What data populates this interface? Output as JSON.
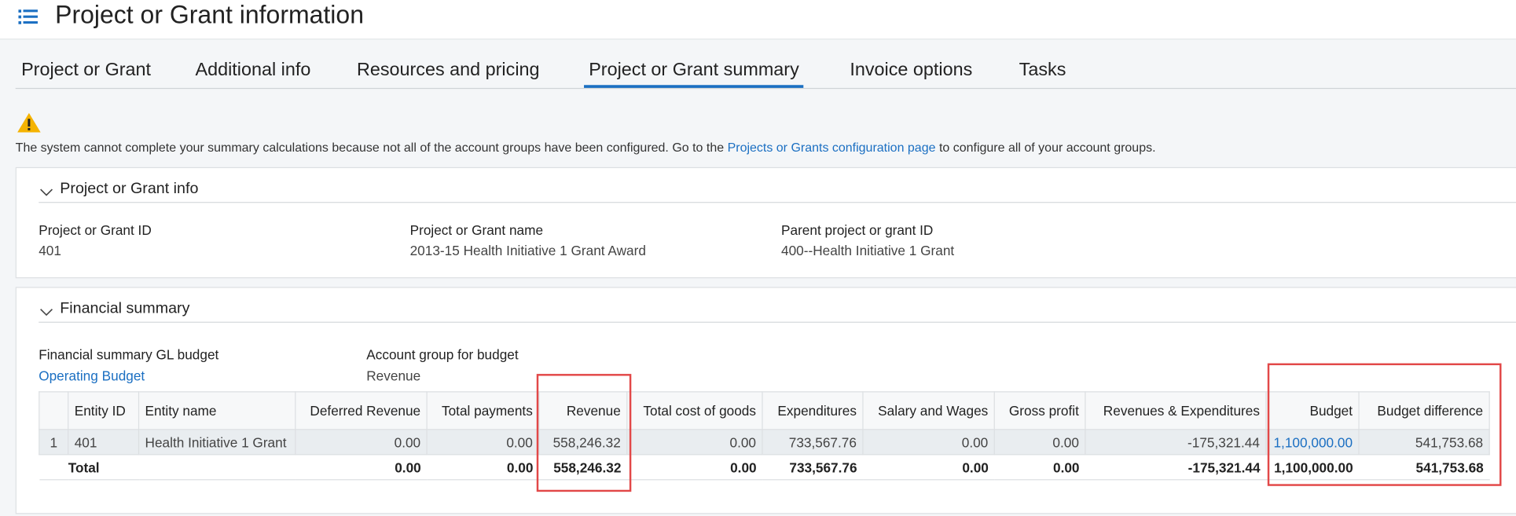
{
  "header": {
    "title": "Project or Grant information"
  },
  "tabs": {
    "items": [
      "Project or Grant",
      "Additional info",
      "Resources and pricing",
      "Project or Grant summary",
      "Invoice options",
      "Tasks"
    ],
    "active": 3
  },
  "warning": {
    "before": "The system cannot complete your summary calculations because not all of the account groups have been configured. Go to the",
    "link": "Projects or Grants configuration page",
    "after": "to configure all of your account groups."
  },
  "info": {
    "title": "Project or Grant info",
    "fields": [
      {
        "label": "Project or Grant ID",
        "value": "401"
      },
      {
        "label": "Project or Grant name",
        "value": "2013-15 Health Initiative 1 Grant Award"
      },
      {
        "label": "Parent project or grant ID",
        "value": "400--Health Initiative 1 Grant"
      }
    ]
  },
  "financial": {
    "title": "Financial summary",
    "fields": [
      {
        "label": "Financial summary GL budget",
        "value": "Operating Budget"
      },
      {
        "label": "Account group for budget",
        "value": "Revenue"
      }
    ]
  },
  "table": {
    "columns": [
      "Entity ID",
      "Entity name",
      "Deferred Revenue",
      "Total payments",
      "Revenue",
      "Total cost of goods",
      "Expenditures",
      "Salary and Wages",
      "Gross profit",
      "Revenues & Expenditures",
      "Budget",
      "Budget difference"
    ],
    "rows": [
      {
        "num": "1",
        "cells": [
          "401",
          "Health Initiative 1 Grant",
          "0.00",
          "0.00",
          "558,246.32",
          "0.00",
          "733,567.76",
          "0.00",
          "0.00",
          "-175,321.44",
          "1,100,000.00",
          "541,753.68"
        ]
      }
    ],
    "total": {
      "label": "Total",
      "cells": [
        "0.00",
        "0.00",
        "558,246.32",
        "0.00",
        "733,567.76",
        "0.00",
        "0.00",
        "-175,321.44",
        "1,100,000.00",
        "541,753.68"
      ]
    }
  }
}
